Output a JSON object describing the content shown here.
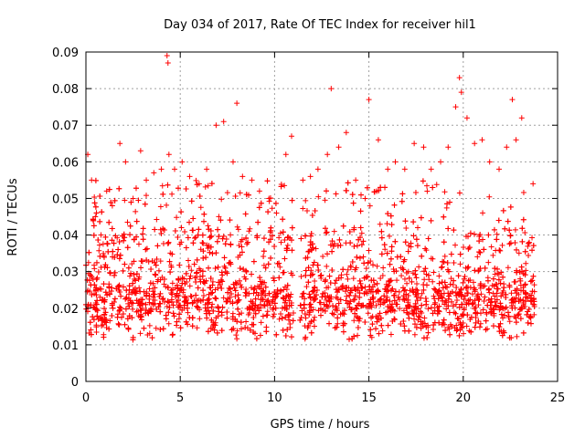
{
  "chart_data": {
    "type": "scatter",
    "title": "Day 034 of 2017, Rate Of TEC Index for receiver hil1",
    "xlabel": "GPS time / hours",
    "ylabel": "ROTI / TECUs",
    "xlim": [
      0,
      25
    ],
    "ylim": [
      0,
      0.09
    ],
    "xticks": [
      "0",
      "5",
      "10",
      "15",
      "20",
      "25"
    ],
    "yticks": [
      "0",
      "0.01",
      "0.02",
      "0.03",
      "0.04",
      "0.05",
      "0.06",
      "0.07",
      "0.08",
      "0.09"
    ],
    "grid": true,
    "marker": "+",
    "color": "#ff0000",
    "data_gap": [
      11.05,
      11.35
    ],
    "series": [
      {
        "x": [
          0.1,
          0.3,
          0.5,
          0.8,
          1.1,
          1.4,
          1.8,
          2.1,
          2.5,
          2.9,
          3.2,
          3.6,
          4.0,
          4.3,
          4.35,
          4.4,
          4.7,
          5.1,
          5.5,
          6.0,
          6.4,
          6.9,
          7.3,
          7.8,
          8.0,
          8.3,
          8.8,
          9.2,
          9.7,
          10.1,
          10.6,
          10.9,
          11.5,
          11.9,
          12.3,
          12.8,
          13.0,
          13.4,
          13.8,
          14.3,
          14.8,
          15.0,
          15.5,
          16.0,
          16.4,
          16.9,
          17.4,
          17.9,
          18.3,
          18.8,
          19.2,
          19.6,
          19.8,
          19.9,
          20.2,
          20.6,
          21.0,
          21.4,
          21.9,
          22.3,
          22.6,
          22.8,
          23.1,
          23.5,
          23.7
        ],
        "y": [
          0.062,
          0.055,
          0.045,
          0.04,
          0.052,
          0.048,
          0.065,
          0.06,
          0.05,
          0.063,
          0.055,
          0.057,
          0.058,
          0.089,
          0.087,
          0.062,
          0.058,
          0.06,
          0.056,
          0.054,
          0.058,
          0.07,
          0.071,
          0.06,
          0.076,
          0.056,
          0.055,
          0.052,
          0.05,
          0.046,
          0.062,
          0.067,
          0.055,
          0.056,
          0.058,
          0.062,
          0.08,
          0.064,
          0.068,
          0.055,
          0.05,
          0.077,
          0.066,
          0.058,
          0.06,
          0.058,
          0.065,
          0.064,
          0.058,
          0.06,
          0.064,
          0.075,
          0.083,
          0.079,
          0.072,
          0.065,
          0.066,
          0.06,
          0.058,
          0.064,
          0.077,
          0.066,
          0.072,
          0.038,
          0.054
        ]
      }
    ]
  }
}
